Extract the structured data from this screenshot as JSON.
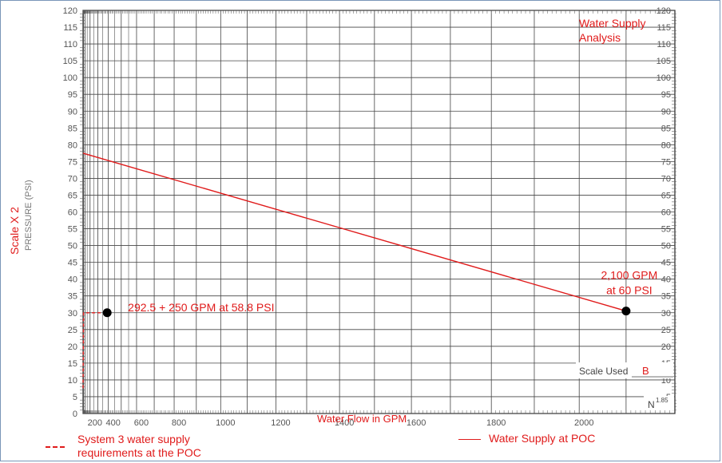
{
  "chart_data": {
    "type": "line",
    "title": "Water Supply\nAnalysis",
    "xlabel": "Water Flow in GPM",
    "ylabel": "PRESSURE (PSI)",
    "scale_label": "Scale X 2",
    "scale_used_label": "Scale Used",
    "scale_used_value": "B",
    "exponent_label": "N",
    "exponent_value": "1.85",
    "x_ticks": [
      200,
      400,
      600,
      800,
      1000,
      1200,
      1400,
      1600,
      1800,
      2000
    ],
    "y_ticks": [
      0,
      5,
      10,
      15,
      20,
      25,
      30,
      35,
      40,
      45,
      50,
      55,
      60,
      65,
      70,
      75,
      80,
      85,
      90,
      95,
      100,
      105,
      110,
      115,
      120
    ],
    "xlim": [
      0,
      2200
    ],
    "ylim": [
      0,
      120
    ],
    "series": [
      {
        "name": "Water Supply at POC",
        "style": "solid",
        "color": "#e01b1b",
        "points": [
          [
            0,
            77.5
          ],
          [
            2100,
            30.5
          ]
        ]
      },
      {
        "name": "System 3 water supply\nrequirements at the POC",
        "style": "dashed",
        "color": "#e01b1b",
        "points": [
          [
            0,
            7.5
          ],
          [
            45,
            30
          ],
          [
            292.5,
            30
          ],
          [
            390,
            30
          ]
        ]
      }
    ],
    "annotations": [
      {
        "text": "292.5 + 250 GPM at 58.8 PSI",
        "marker_x": 390,
        "marker_y": 30
      },
      {
        "text": "2,100 GPM\nat 60 PSI",
        "marker_x": 2100,
        "marker_y": 30.5
      }
    ]
  }
}
